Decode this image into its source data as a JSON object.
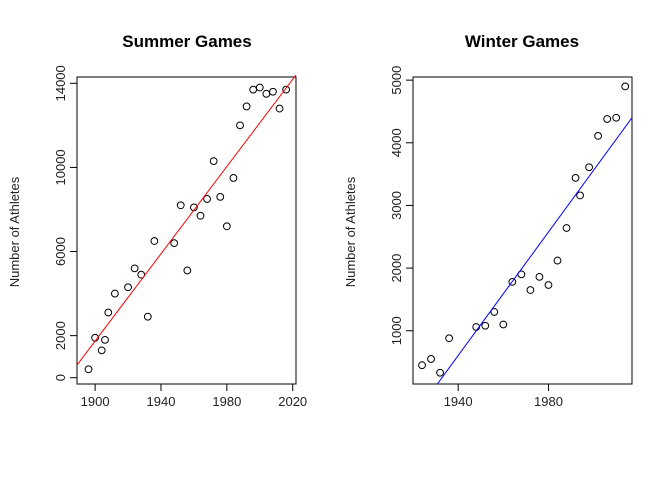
{
  "chart_data": [
    {
      "type": "scatter",
      "title": "Summer Games",
      "xlabel": "",
      "ylabel": "Number of Athletes",
      "xlim": [
        1889,
        2022
      ],
      "ylim": [
        -300,
        14300
      ],
      "x_ticks": [
        1900,
        1940,
        1980,
        2020
      ],
      "y_ticks": [
        0,
        2000,
        6000,
        10000,
        14000
      ],
      "x_tick_labels": [
        "1900",
        "1940",
        "1980",
        "2020"
      ],
      "y_tick_labels": [
        "0",
        "2000",
        "6000",
        "10000",
        "14000"
      ],
      "grid": false,
      "trendline": {
        "color": "#ff0000",
        "x": [
          1889,
          2022
        ],
        "y": [
          600,
          14400
        ]
      },
      "points": [
        [
          1896,
          400
        ],
        [
          1900,
          1900
        ],
        [
          1904,
          1300
        ],
        [
          1906,
          1800
        ],
        [
          1908,
          3100
        ],
        [
          1912,
          4000
        ],
        [
          1920,
          4300
        ],
        [
          1924,
          5200
        ],
        [
          1928,
          4900
        ],
        [
          1932,
          2900
        ],
        [
          1936,
          6500
        ],
        [
          1948,
          6400
        ],
        [
          1952,
          8200
        ],
        [
          1956,
          5100
        ],
        [
          1960,
          8100
        ],
        [
          1964,
          7700
        ],
        [
          1968,
          8500
        ],
        [
          1972,
          10300
        ],
        [
          1976,
          8600
        ],
        [
          1980,
          7200
        ],
        [
          1984,
          9500
        ],
        [
          1988,
          12000
        ],
        [
          1992,
          12900
        ],
        [
          1996,
          13700
        ],
        [
          2000,
          13800
        ],
        [
          2004,
          13500
        ],
        [
          2008,
          13600
        ],
        [
          2012,
          12800
        ],
        [
          2016,
          13700
        ]
      ]
    },
    {
      "type": "scatter",
      "title": "Winter Games",
      "xlabel": "",
      "ylabel": "Number of Athletes",
      "xlim": [
        1920,
        2017
      ],
      "ylim": [
        150,
        5050
      ],
      "x_ticks": [
        1940,
        1980
      ],
      "y_ticks": [
        1000,
        2000,
        3000,
        4000,
        5000
      ],
      "x_tick_labels": [
        "1940",
        "1980"
      ],
      "y_tick_labels": [
        "1000",
        "2000",
        "3000",
        "4000",
        "5000"
      ],
      "grid": false,
      "trendline": {
        "color": "#0000ff",
        "x": [
          1930.8,
          2017
        ],
        "y": [
          150,
          4400
        ]
      },
      "points": [
        [
          1924,
          450
        ],
        [
          1928,
          550
        ],
        [
          1932,
          330
        ],
        [
          1936,
          880
        ],
        [
          1948,
          1060
        ],
        [
          1952,
          1080
        ],
        [
          1956,
          1300
        ],
        [
          1960,
          1100
        ],
        [
          1964,
          1780
        ],
        [
          1968,
          1900
        ],
        [
          1972,
          1650
        ],
        [
          1976,
          1860
        ],
        [
          1980,
          1730
        ],
        [
          1984,
          2120
        ],
        [
          1988,
          2640
        ],
        [
          1992,
          3440
        ],
        [
          1994,
          3160
        ],
        [
          1998,
          3610
        ],
        [
          2002,
          4110
        ],
        [
          2006,
          4380
        ],
        [
          2010,
          4400
        ],
        [
          2014,
          4900
        ]
      ]
    }
  ]
}
